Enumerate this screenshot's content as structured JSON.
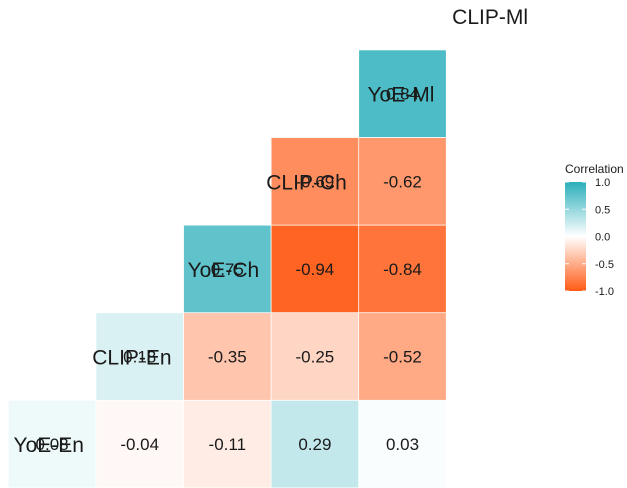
{
  "chart_data": {
    "type": "heatmap",
    "variables": [
      "YoE-En",
      "CLIP-En",
      "YoE-Ch",
      "CLIP-Ch",
      "YoE-Ml",
      "CLIP-Ml"
    ],
    "cells": [
      {
        "row": "YoE-En",
        "col": "YoE-En",
        "value": 0.08
      },
      {
        "row": "YoE-En",
        "col": "CLIP-En",
        "value": -0.04
      },
      {
        "row": "YoE-En",
        "col": "YoE-Ch",
        "value": -0.11
      },
      {
        "row": "YoE-En",
        "col": "CLIP-Ch",
        "value": 0.29
      },
      {
        "row": "YoE-En",
        "col": "YoE-Ml",
        "value": 0.03
      },
      {
        "row": "CLIP-En",
        "col": "CLIP-En",
        "value": 0.18
      },
      {
        "row": "CLIP-En",
        "col": "YoE-Ch",
        "value": -0.35
      },
      {
        "row": "CLIP-En",
        "col": "CLIP-Ch",
        "value": -0.25
      },
      {
        "row": "CLIP-En",
        "col": "YoE-Ml",
        "value": -0.52
      },
      {
        "row": "YoE-Ch",
        "col": "YoE-Ch",
        "value": 0.75
      },
      {
        "row": "YoE-Ch",
        "col": "CLIP-Ch",
        "value": -0.94
      },
      {
        "row": "YoE-Ch",
        "col": "YoE-Ml",
        "value": -0.84
      },
      {
        "row": "CLIP-Ch",
        "col": "CLIP-Ch",
        "value": -0.69
      },
      {
        "row": "CLIP-Ch",
        "col": "YoE-Ml",
        "value": -0.62
      },
      {
        "row": "YoE-Ml",
        "col": "YoE-Ml",
        "value": 0.84
      }
    ],
    "legend": {
      "title": "Correlation",
      "ticks": [
        "1.0",
        "0.5",
        "0.0",
        "-0.5",
        "-1.0"
      ],
      "range": [
        -1,
        1
      ],
      "placement": "right"
    },
    "colors": {
      "positive": "#2BAFBB",
      "zero": "#FFFFFF",
      "negative": "#FF5A14"
    }
  }
}
